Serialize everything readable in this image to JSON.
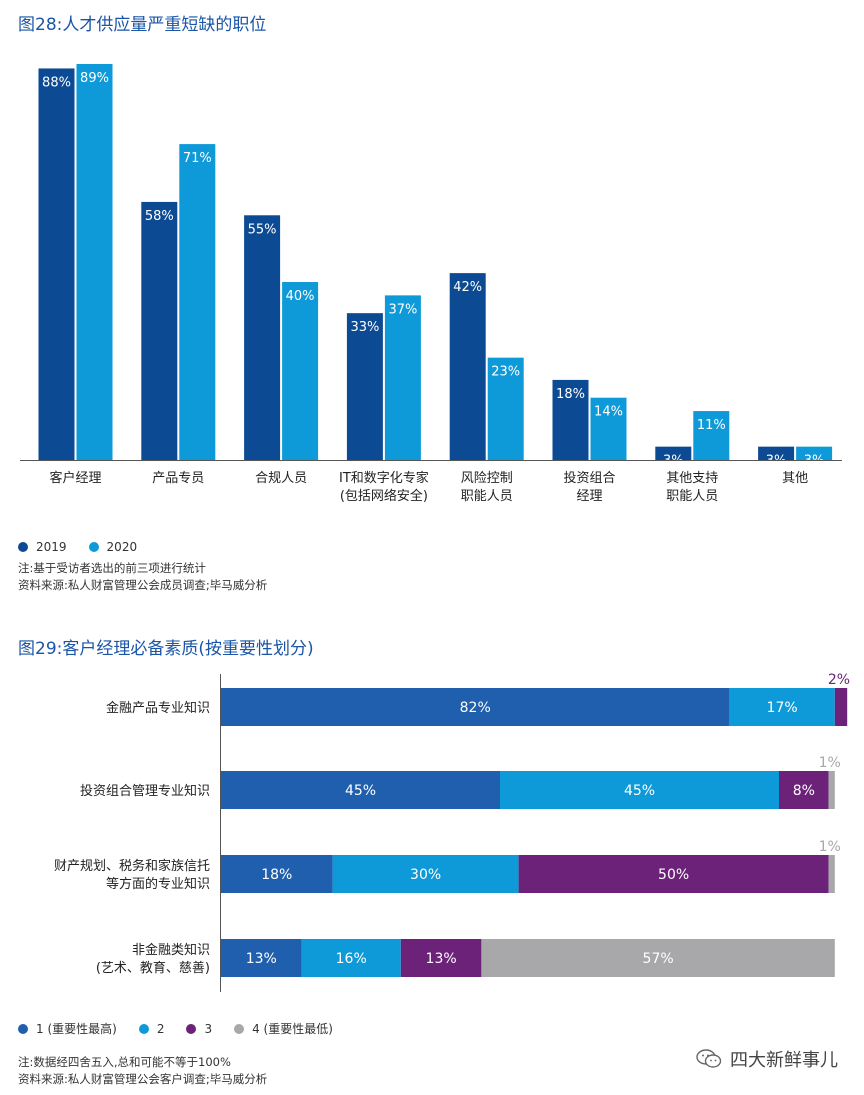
{
  "chart_data": [
    {
      "type": "bar",
      "title": "图28:人才供应量严重短缺的职位",
      "categories": [
        "客户经理",
        "产品专员",
        "合规人员",
        "IT和数字化专家\n(包括网络安全)",
        "风险控制\n职能人员",
        "投资组合\n经理",
        "其他支持\n职能人员",
        "其他"
      ],
      "series": [
        {
          "name": "2019",
          "values": [
            88,
            58,
            55,
            33,
            42,
            18,
            3,
            3
          ],
          "labels": [
            "88%",
            "58%",
            "55%",
            "33%",
            "42%",
            "18%",
            "3%",
            "3%"
          ]
        },
        {
          "name": "2020",
          "values": [
            89,
            71,
            40,
            37,
            23,
            14,
            11,
            3
          ],
          "labels": [
            "89%",
            "71%",
            "40%",
            "37%",
            "23%",
            "14%",
            "11%",
            "3%"
          ]
        }
      ],
      "ylim": [
        0,
        89
      ],
      "grid": false,
      "legend_position": "bottom-left",
      "colors": [
        "#0d4a94",
        "#0e9ad8"
      ]
    },
    {
      "type": "bar",
      "orientation": "horizontal-stacked",
      "title": "图29:客户经理必备素质(按重要性划分)",
      "categories": [
        "金融产品专业知识",
        "投资组合管理专业知识",
        "财产规划、税务和家族信托\n等方面的专业知识",
        "非金融类知识\n(艺术、教育、慈善)"
      ],
      "series": [
        {
          "name": "1 (重要性最高)",
          "values": [
            82,
            45,
            18,
            13
          ],
          "labels": [
            "82%",
            "45%",
            "18%",
            "13%"
          ]
        },
        {
          "name": "2",
          "values": [
            17,
            45,
            30,
            16
          ],
          "labels": [
            "17%",
            "45%",
            "30%",
            "16%"
          ]
        },
        {
          "name": "3",
          "values": [
            2,
            8,
            50,
            13
          ],
          "labels": [
            "2%",
            "8%",
            "50%",
            "13%"
          ]
        },
        {
          "name": "4 (重要性最低)",
          "values": [
            0,
            1,
            1,
            57
          ],
          "labels": [
            "",
            "1%",
            "1%",
            "57%"
          ]
        }
      ],
      "xlim": [
        0,
        101
      ],
      "grid": false,
      "legend_position": "bottom-left",
      "colors": [
        "#1f5fad",
        "#0e9ad8",
        "#6b2278",
        "#a8a8ab"
      ]
    }
  ],
  "chart1": {
    "legend": [
      {
        "label": "2019",
        "color": "#0d4a94"
      },
      {
        "label": "2020",
        "color": "#0e9ad8"
      }
    ],
    "notes": [
      "注:基于受访者选出的前三项进行统计",
      "资料来源:私人财富管理公会成员调查;毕马威分析"
    ]
  },
  "chart2": {
    "legend": [
      {
        "label": "1 (重要性最高)",
        "color": "#1f5fad"
      },
      {
        "label": "2",
        "color": "#0e9ad8"
      },
      {
        "label": "3",
        "color": "#6b2278"
      },
      {
        "label": "4 (重要性最低)",
        "color": "#a8a8ab"
      }
    ],
    "notes": [
      "注:数据经四舍五入,总和可能不等于100%",
      "资料来源:私人财富管理公会客户调查;毕马威分析"
    ]
  },
  "watermark": {
    "text": "四大新鲜事儿",
    "icon": "wechat-icon"
  }
}
